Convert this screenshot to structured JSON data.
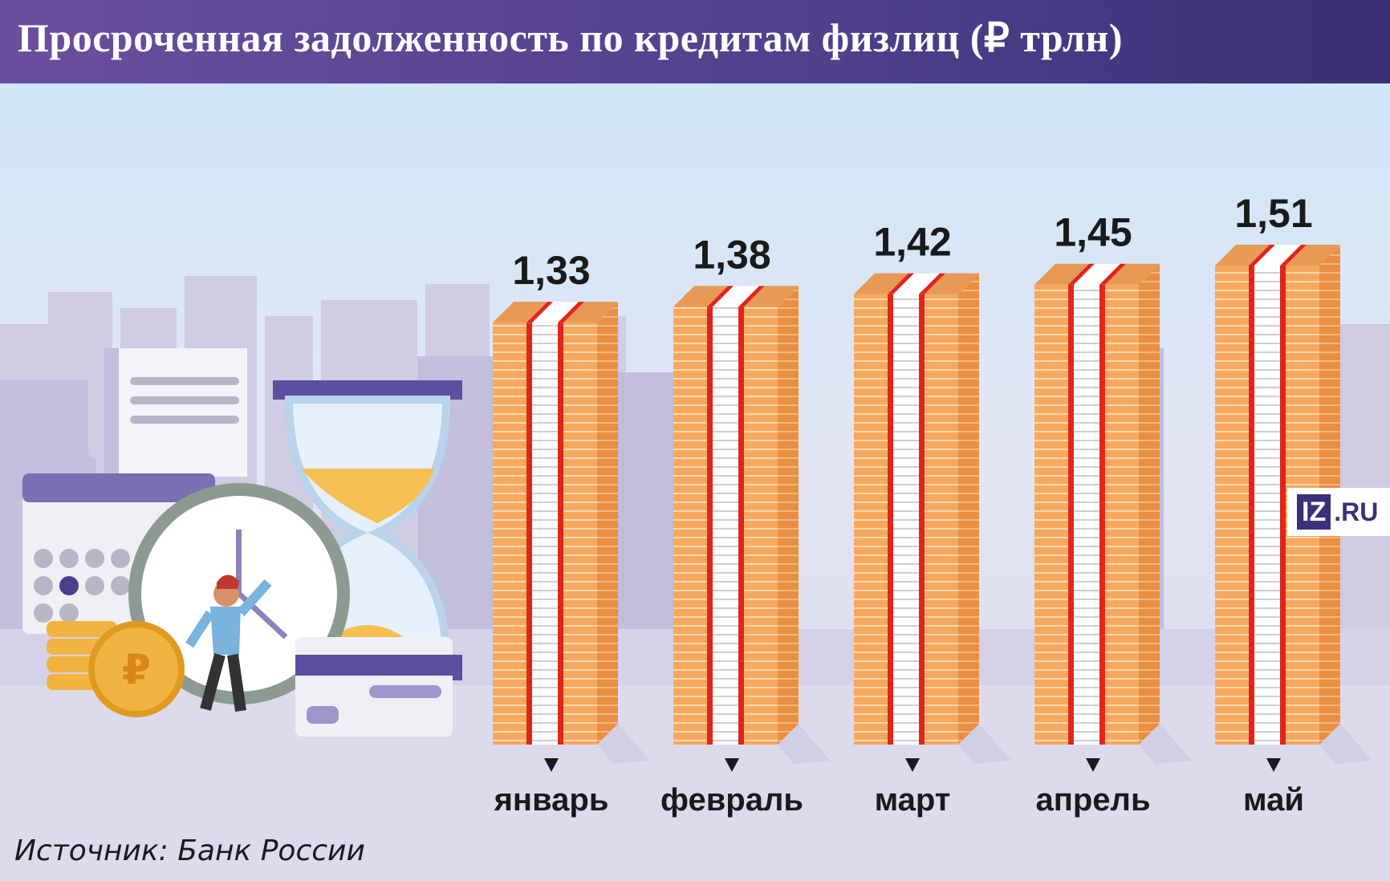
{
  "header": {
    "title": "Просроченная задолженность по кредитам физлиц (₽ трлн)"
  },
  "source": "Источник: Банк России",
  "logo": {
    "box": "IZ",
    "text": ".RU"
  },
  "colors": {
    "stack_orange": "#f5a65b",
    "stack_line": "#e08a40",
    "band_red": "#e0261c",
    "header_purple": "#5a4690"
  },
  "illustration": {
    "coin_symbol": "₽"
  },
  "chart_data": {
    "type": "bar",
    "title": "Просроченная задолженность по кредитам физлиц (₽ трлн)",
    "categories": [
      "январь",
      "февраль",
      "март",
      "апрель",
      "май"
    ],
    "values": [
      1.33,
      1.38,
      1.42,
      1.45,
      1.51
    ],
    "labels": [
      "1,33",
      "1,38",
      "1,42",
      "1,45",
      "1,51"
    ],
    "xlabel": "",
    "ylabel": "",
    "grid": false,
    "legend": "none"
  }
}
